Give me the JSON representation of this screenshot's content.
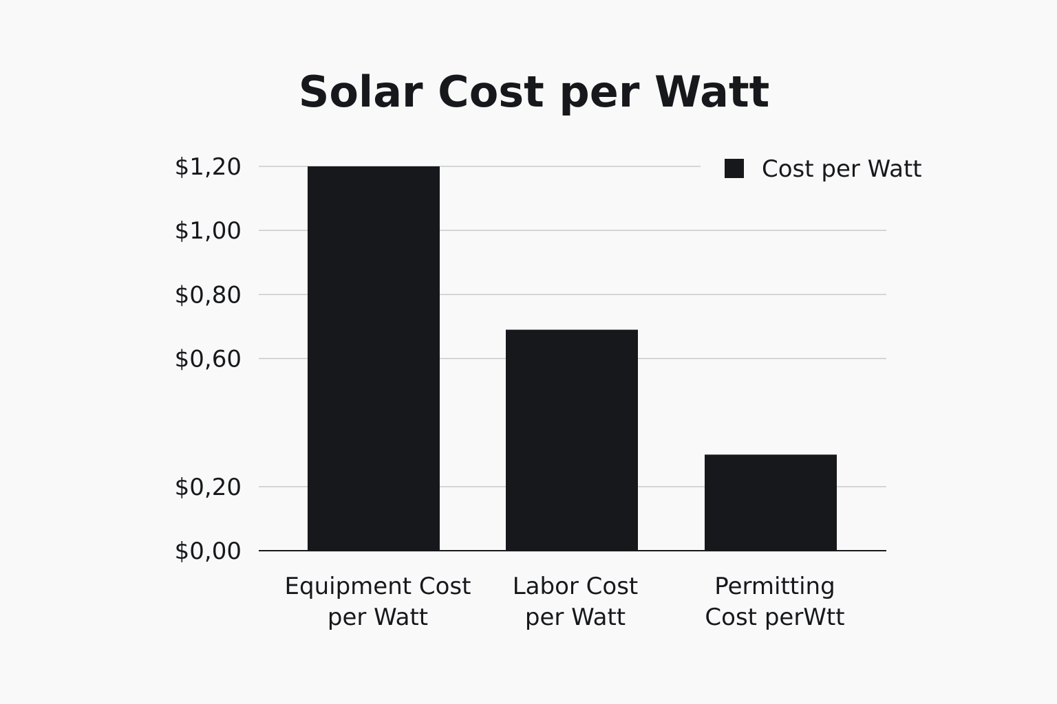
{
  "chart_data": {
    "type": "bar",
    "title": "Solar Cost per Watt",
    "categories": [
      [
        "Equipment Cost",
        "per Watt"
      ],
      [
        "Labor Cost",
        "per Watt"
      ],
      [
        "Permitting",
        "Cost perWtt"
      ]
    ],
    "series": [
      {
        "name": "Cost per Watt",
        "values": [
          1.2,
          0.69,
          0.3
        ],
        "color": "#17181c"
      }
    ],
    "y_ticks": [
      {
        "value": 0.0,
        "label": "$0,00"
      },
      {
        "value": 0.2,
        "label": "$0,20"
      },
      {
        "value": 0.6,
        "label": "$0,60"
      },
      {
        "value": 0.8,
        "label": "$0,80"
      },
      {
        "value": 1.0,
        "label": "$1,00"
      },
      {
        "value": 1.2,
        "label": "$1,20"
      }
    ],
    "ylim": [
      0,
      1.2
    ],
    "grid": true,
    "legend_position": "top-right"
  }
}
